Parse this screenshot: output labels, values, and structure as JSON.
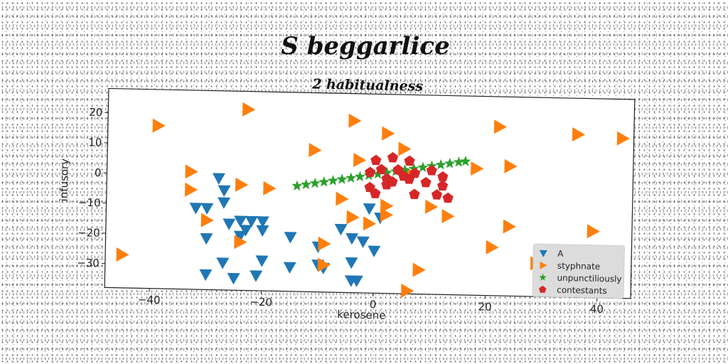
{
  "chart_data": {
    "type": "scatter",
    "title": "S beggarlice",
    "subtitle": "2 habitualness",
    "xlabel": "kerosene",
    "ylabel": "infusory",
    "xlim": [
      -48,
      46
    ],
    "ylim": [
      -38,
      28
    ],
    "xticks": [
      -40,
      -20,
      0,
      20,
      40
    ],
    "yticks": [
      -30,
      -20,
      -10,
      0,
      10,
      20
    ],
    "grid": false,
    "legend_position": "bottom-right",
    "series": [
      {
        "name": "A",
        "marker": "triangle-down",
        "color": "#1f77b4",
        "points": [
          [
            -28,
            -1
          ],
          [
            -27,
            -5
          ],
          [
            -27,
            -9
          ],
          [
            -32,
            -11
          ],
          [
            -30,
            -11
          ],
          [
            -24,
            -15
          ],
          [
            -22,
            -15
          ],
          [
            -20,
            -15
          ],
          [
            -26,
            -16
          ],
          [
            -23,
            -18
          ],
          [
            -20,
            -18
          ],
          [
            -24,
            -20
          ],
          [
            -30,
            -21
          ],
          [
            -15,
            -20
          ],
          [
            -10,
            -23
          ],
          [
            -6,
            -17
          ],
          [
            -4,
            -20
          ],
          [
            -2,
            -21
          ],
          [
            -1,
            -10
          ],
          [
            1,
            -13
          ],
          [
            0,
            -24
          ],
          [
            -27,
            -29
          ],
          [
            -20,
            -28
          ],
          [
            -15,
            -30
          ],
          [
            -10,
            -29
          ],
          [
            -9,
            -30
          ],
          [
            -4,
            -28
          ],
          [
            -21,
            -33
          ],
          [
            -25,
            -34
          ],
          [
            -30,
            -33
          ],
          [
            -4,
            -34
          ],
          [
            -3,
            -34
          ]
        ]
      },
      {
        "name": "styphnate",
        "marker": "triangle-right",
        "color": "#ff7f0e",
        "points": [
          [
            -23,
            22
          ],
          [
            -39,
            16
          ],
          [
            -4,
            19
          ],
          [
            2,
            15
          ],
          [
            5,
            10
          ],
          [
            22,
            18
          ],
          [
            36,
            16
          ],
          [
            44,
            15
          ],
          [
            -11,
            9
          ],
          [
            -3,
            6
          ],
          [
            18,
            4
          ],
          [
            24,
            5
          ],
          [
            -33,
            1
          ],
          [
            -24,
            -3
          ],
          [
            -19,
            -4
          ],
          [
            -33,
            -5
          ],
          [
            -6,
            -7
          ],
          [
            2,
            -9
          ],
          [
            2,
            -12
          ],
          [
            10,
            -9
          ],
          [
            13,
            -12
          ],
          [
            -4,
            -13
          ],
          [
            -1,
            -15
          ],
          [
            -30,
            -15
          ],
          [
            -24,
            -22
          ],
          [
            24,
            -15
          ],
          [
            39,
            -16
          ],
          [
            -9,
            -22
          ],
          [
            21,
            -22
          ],
          [
            29,
            -27
          ],
          [
            -45,
            -27
          ],
          [
            -9,
            -29
          ],
          [
            8,
            -30
          ],
          [
            6,
            -37
          ],
          [
            6,
            2
          ]
        ]
      },
      {
        "name": "unpunctiliously",
        "marker": "star",
        "color": "#2ca02c",
        "points": [
          [
            -14,
            -3
          ],
          [
            -12.4,
            -2.5
          ],
          [
            -10.8,
            -2
          ],
          [
            -9.2,
            -1.5
          ],
          [
            -7.6,
            -1
          ],
          [
            -6,
            -0.5
          ],
          [
            -4.4,
            0
          ],
          [
            -2.8,
            0.5
          ],
          [
            -1.2,
            1
          ],
          [
            0.4,
            1.5
          ],
          [
            2,
            2
          ],
          [
            3.6,
            2.5
          ],
          [
            5.2,
            3
          ],
          [
            6.8,
            3.5
          ],
          [
            8.4,
            4
          ],
          [
            10,
            4.5
          ],
          [
            11.6,
            5
          ],
          [
            13.2,
            5.5
          ],
          [
            14.8,
            6
          ],
          [
            16,
            6.3
          ]
        ]
      },
      {
        "name": "contestants",
        "marker": "pentagon",
        "color": "#d62728",
        "points": [
          [
            0,
            6
          ],
          [
            3,
            7
          ],
          [
            6,
            6
          ],
          [
            -1,
            2
          ],
          [
            1,
            3
          ],
          [
            4,
            3
          ],
          [
            7,
            2
          ],
          [
            10,
            3
          ],
          [
            12,
            1
          ],
          [
            3,
            -1
          ],
          [
            6,
            0
          ],
          [
            9,
            -1
          ],
          [
            12,
            -2
          ],
          [
            -1,
            -3
          ],
          [
            2,
            -2
          ],
          [
            0,
            -5
          ],
          [
            7,
            -5
          ],
          [
            11,
            -5
          ],
          [
            13,
            -6
          ],
          [
            5,
            1
          ],
          [
            2,
            0
          ]
        ]
      }
    ]
  }
}
